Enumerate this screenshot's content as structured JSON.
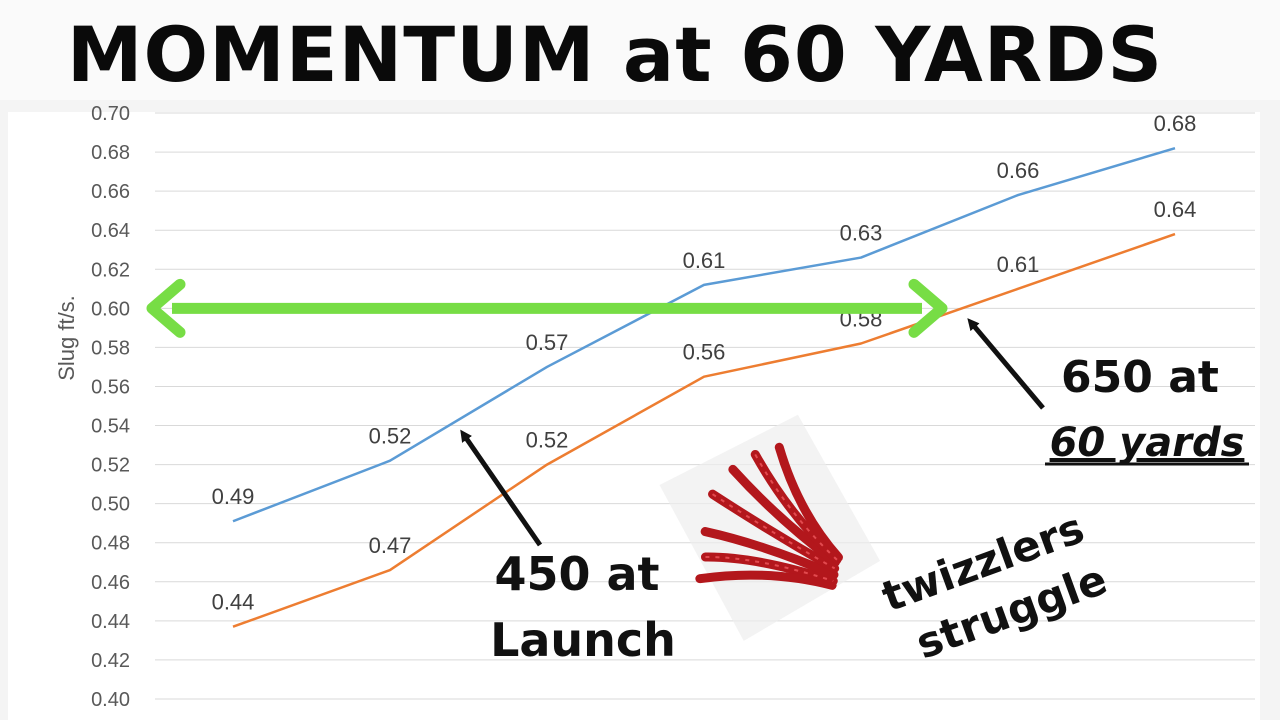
{
  "title": "MOMENTUM at 60 YARDS",
  "chart_data": {
    "type": "line",
    "ylabel": "Slug ft/s.",
    "ylim": [
      0.4,
      0.7
    ],
    "yticks": [
      "0.40",
      "0.42",
      "0.44",
      "0.46",
      "0.48",
      "0.50",
      "0.52",
      "0.54",
      "0.56",
      "0.58",
      "0.60",
      "0.62",
      "0.64",
      "0.66",
      "0.68",
      "0.70"
    ],
    "x": [
      1,
      2,
      3,
      4,
      5,
      6,
      7
    ],
    "grid": true,
    "series": [
      {
        "values": [
          0.491,
          0.522,
          0.57,
          0.612,
          0.626,
          0.658,
          0.682
        ],
        "labels": [
          "0.49",
          "0.52",
          "0.57",
          "0.61",
          "0.63",
          "0.66",
          "0.68"
        ],
        "color": "#5b9bd5"
      },
      {
        "values": [
          0.437,
          0.466,
          0.52,
          0.565,
          0.582,
          0.61,
          0.638
        ],
        "labels": [
          "0.44",
          "0.47",
          "0.52",
          "0.56",
          "0.58",
          "0.61",
          "0.64"
        ],
        "color": "#ed7d31"
      }
    ],
    "reference_arrow": {
      "y": 0.6,
      "color": "#77dd45"
    },
    "annotations": [
      {
        "lines": [
          "450 at",
          "Launch"
        ],
        "points_to": {
          "series": 0,
          "x": 2.45
        }
      },
      {
        "lines": [
          "650 at",
          "60 yards"
        ],
        "points_to": {
          "series": 1,
          "x": 5.6
        }
      }
    ]
  },
  "overlay": {
    "image_icon": "licorice-twists-icon",
    "caption": [
      "twizzlers",
      "struggle"
    ]
  }
}
